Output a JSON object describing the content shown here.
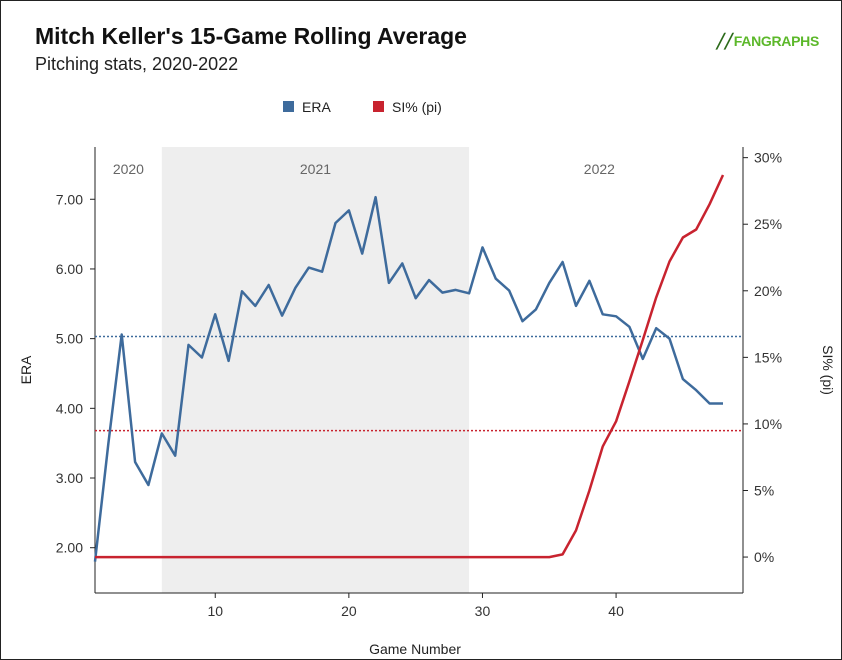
{
  "header": {
    "title": "Mitch Keller's 15-Game Rolling Average",
    "subtitle": "Pitching stats, 2020-2022",
    "logo_mark": "╱╱",
    "logo_text": "FANGRAPHS"
  },
  "colors": {
    "era": "#3e6b9c",
    "si": "#c8232f",
    "season_band": "#eeeeee"
  },
  "chart_data": {
    "type": "line",
    "title": "Mitch Keller's 15-Game Rolling Average",
    "subtitle": "Pitching stats, 2020-2022",
    "xlabel": "Game Number",
    "ylabel_left": "ERA",
    "ylabel_right": "SI% (pi)",
    "xlim": [
      1,
      49.5
    ],
    "ylim_left": [
      1.35,
      7.75
    ],
    "ylim_right": [
      -2.7,
      30.8
    ],
    "x_ticks": [
      10,
      20,
      30,
      40
    ],
    "y_ticks_left": [
      {
        "value": 2,
        "label": "2.00"
      },
      {
        "value": 3,
        "label": "3.00"
      },
      {
        "value": 4,
        "label": "4.00"
      },
      {
        "value": 5,
        "label": "5.00"
      },
      {
        "value": 6,
        "label": "6.00"
      },
      {
        "value": 7,
        "label": "7.00"
      }
    ],
    "y_ticks_right": [
      {
        "value": 0,
        "label": "0%"
      },
      {
        "value": 5,
        "label": "5%"
      },
      {
        "value": 10,
        "label": "10%"
      },
      {
        "value": 15,
        "label": "15%"
      },
      {
        "value": 20,
        "label": "20%"
      },
      {
        "value": 25,
        "label": "25%"
      },
      {
        "value": 30,
        "label": "30%"
      }
    ],
    "grid": false,
    "legend_position": "top-center",
    "seasons": [
      {
        "label": "2020",
        "start": 1,
        "end": 6,
        "shaded": false
      },
      {
        "label": "2021",
        "start": 6,
        "end": 29,
        "shaded": true
      },
      {
        "label": "2022",
        "start": 29,
        "end": 49.5,
        "shaded": false
      }
    ],
    "reference_lines": [
      {
        "axis": "left",
        "value": 5.03,
        "series": "ERA"
      },
      {
        "axis": "right",
        "value": 9.5,
        "series": "SI% (pi)"
      }
    ],
    "series": [
      {
        "name": "ERA",
        "axis": "left",
        "x": [
          1,
          2,
          3,
          4,
          5,
          6,
          7,
          8,
          9,
          10,
          11,
          12,
          13,
          14,
          15,
          16,
          17,
          18,
          19,
          20,
          21,
          22,
          23,
          24,
          25,
          26,
          27,
          28,
          29,
          30,
          31,
          32,
          33,
          34,
          35,
          36,
          37,
          38,
          39,
          40,
          41,
          42,
          43,
          44,
          45,
          46,
          47,
          48
        ],
        "values": [
          1.8,
          3.5,
          5.06,
          3.23,
          2.9,
          3.64,
          3.32,
          4.91,
          4.73,
          5.35,
          4.68,
          5.68,
          5.47,
          5.77,
          5.33,
          5.73,
          6.02,
          5.96,
          6.66,
          6.84,
          6.22,
          7.03,
          5.8,
          6.08,
          5.58,
          5.84,
          5.66,
          5.7,
          5.65,
          6.31,
          5.86,
          5.69,
          5.25,
          5.42,
          5.8,
          6.1,
          5.47,
          5.83,
          5.35,
          5.32,
          5.17,
          4.71,
          5.15,
          5.0,
          4.42,
          4.26,
          4.07,
          4.07
        ]
      },
      {
        "name": "SI% (pi)",
        "axis": "right",
        "x": [
          1,
          2,
          3,
          4,
          5,
          6,
          7,
          8,
          9,
          10,
          11,
          12,
          13,
          14,
          15,
          16,
          17,
          18,
          19,
          20,
          21,
          22,
          23,
          24,
          25,
          26,
          27,
          28,
          29,
          30,
          31,
          32,
          33,
          34,
          35,
          36,
          37,
          38,
          39,
          40,
          41,
          42,
          43,
          44,
          45,
          46,
          47,
          48
        ],
        "values": [
          0,
          0,
          0,
          0,
          0,
          0,
          0,
          0,
          0,
          0,
          0,
          0,
          0,
          0,
          0,
          0,
          0,
          0,
          0,
          0,
          0,
          0,
          0,
          0,
          0,
          0,
          0,
          0,
          0,
          0,
          0,
          0,
          0,
          0,
          0,
          0.2,
          2.0,
          5.0,
          8.3,
          10.2,
          13.2,
          16.3,
          19.5,
          22.2,
          24.0,
          24.6,
          26.5,
          28.7
        ]
      }
    ]
  }
}
